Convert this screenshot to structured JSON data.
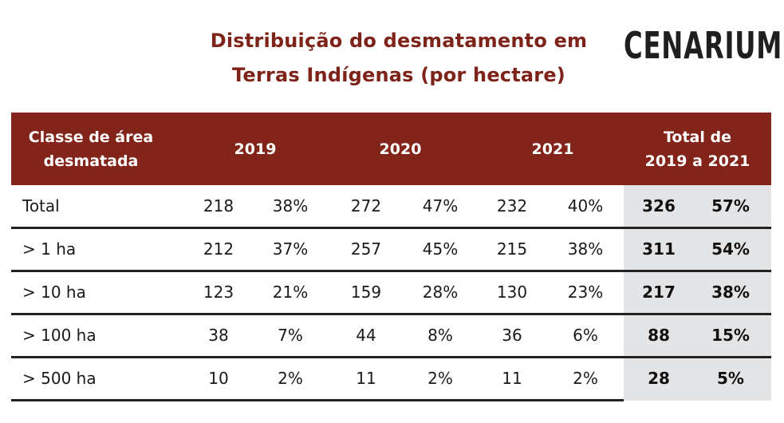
{
  "title": {
    "line1": "Distribuição do desmatamento em",
    "line2": "Terras Indígenas (por hectare)"
  },
  "logo": {
    "text": "CENARIUM",
    "accent_color": "#8b1a10"
  },
  "colors": {
    "header_bg": "#82241a",
    "title_color": "#7d2319",
    "total_col_bg": "#e3e4e6"
  },
  "table": {
    "headers": {
      "class_line1": "Classe de área",
      "class_line2": "desmatada",
      "y2019": "2019",
      "y2020": "2020",
      "y2021": "2021",
      "total_line1": "Total de",
      "total_line2": "2019 a 2021"
    },
    "rows": [
      {
        "label": "Total",
        "v2019": "218",
        "p2019": "38%",
        "v2020": "272",
        "p2020": "47%",
        "v2021": "232",
        "p2021": "40%",
        "vtotal": "326",
        "ptotal": "57%"
      },
      {
        "label": "> 1 ha",
        "v2019": "212",
        "p2019": "37%",
        "v2020": "257",
        "p2020": "45%",
        "v2021": "215",
        "p2021": "38%",
        "vtotal": "311",
        "ptotal": "54%"
      },
      {
        "label": "> 10 ha",
        "v2019": "123",
        "p2019": "21%",
        "v2020": "159",
        "p2020": "28%",
        "v2021": "130",
        "p2021": "23%",
        "vtotal": "217",
        "ptotal": "38%"
      },
      {
        "label": "> 100 ha",
        "v2019": "38",
        "p2019": "7%",
        "v2020": "44",
        "p2020": "8%",
        "v2021": "36",
        "p2021": "6%",
        "vtotal": "88",
        "ptotal": "15%"
      },
      {
        "label": "> 500 ha",
        "v2019": "10",
        "p2019": "2%",
        "v2020": "11",
        "p2020": "2%",
        "v2021": "11",
        "p2021": "2%",
        "vtotal": "28",
        "ptotal": "5%"
      }
    ]
  }
}
